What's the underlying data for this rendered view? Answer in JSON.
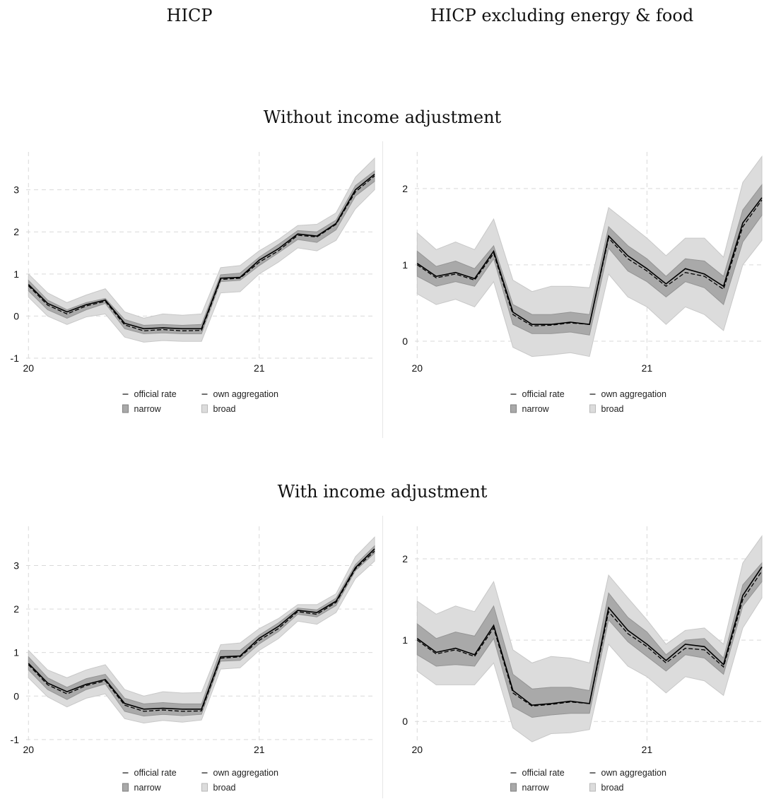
{
  "column_titles": [
    "HICP",
    "HICP excluding energy & food"
  ],
  "row_titles": [
    "Without income adjustment",
    "With income adjustment"
  ],
  "legend": {
    "official": "official rate",
    "own": "own aggregation",
    "narrow": "narrow",
    "broad": "broad"
  },
  "colors": {
    "narrow": "#a9a9a9",
    "broad": "#dcdcdc",
    "line": "#000000",
    "grid": "#d9d9d9"
  },
  "chart_data": [
    {
      "type": "line",
      "id": "hicp-without",
      "x": [
        20.0,
        20.083,
        20.167,
        20.25,
        20.333,
        20.417,
        20.5,
        20.583,
        20.667,
        20.75,
        20.833,
        20.917,
        21.0,
        21.083,
        21.167,
        21.25,
        21.333,
        21.417,
        21.5
      ],
      "xticks": [
        20,
        21
      ],
      "xlim": [
        19.99,
        21.5
      ],
      "yticks": [
        -1,
        0,
        1,
        2,
        3
      ],
      "ylim": [
        -1.05,
        3.9
      ],
      "series": [
        {
          "name": "official rate",
          "values": [
            0.75,
            0.3,
            0.1,
            0.27,
            0.38,
            -0.17,
            -0.3,
            -0.28,
            -0.3,
            -0.3,
            0.9,
            0.92,
            1.33,
            1.6,
            1.95,
            1.9,
            2.2,
            3.0,
            3.37
          ]
        },
        {
          "name": "own aggregation",
          "values": [
            0.72,
            0.26,
            0.05,
            0.24,
            0.35,
            -0.21,
            -0.35,
            -0.32,
            -0.35,
            -0.34,
            0.87,
            0.9,
            1.28,
            1.55,
            1.92,
            1.88,
            2.18,
            2.95,
            3.33
          ]
        },
        {
          "name": "narrow",
          "lower": [
            0.6,
            0.15,
            -0.05,
            0.15,
            0.3,
            -0.3,
            -0.42,
            -0.4,
            -0.42,
            -0.42,
            0.82,
            0.85,
            1.2,
            1.5,
            1.82,
            1.75,
            2.05,
            2.85,
            3.2
          ],
          "upper": [
            0.85,
            0.38,
            0.15,
            0.32,
            0.42,
            -0.08,
            -0.22,
            -0.2,
            -0.22,
            -0.2,
            0.98,
            1.02,
            1.4,
            1.7,
            2.03,
            2.0,
            2.28,
            3.1,
            3.45
          ]
        },
        {
          "name": "broad",
          "lower": [
            0.45,
            0.0,
            -0.2,
            -0.02,
            0.05,
            -0.5,
            -0.62,
            -0.58,
            -0.6,
            -0.6,
            0.55,
            0.58,
            1.0,
            1.28,
            1.62,
            1.55,
            1.8,
            2.55,
            3.0
          ],
          "upper": [
            1.0,
            0.55,
            0.32,
            0.5,
            0.65,
            0.1,
            -0.05,
            0.05,
            0.02,
            0.05,
            1.15,
            1.2,
            1.55,
            1.82,
            2.15,
            2.18,
            2.45,
            3.3,
            3.75
          ]
        }
      ]
    },
    {
      "type": "line",
      "id": "core-without",
      "x": [
        20.0,
        20.083,
        20.167,
        20.25,
        20.333,
        20.417,
        20.5,
        20.583,
        20.667,
        20.75,
        20.833,
        20.917,
        21.0,
        21.083,
        21.167,
        21.25,
        21.333,
        21.417,
        21.5
      ],
      "xticks": [
        20,
        21
      ],
      "xlim": [
        19.99,
        21.5
      ],
      "yticks": [
        0,
        1,
        2
      ],
      "ylim": [
        -0.25,
        2.48
      ],
      "series": [
        {
          "name": "official rate",
          "values": [
            1.02,
            0.85,
            0.9,
            0.82,
            1.18,
            0.38,
            0.22,
            0.22,
            0.25,
            0.22,
            1.38,
            1.12,
            0.95,
            0.75,
            0.95,
            0.88,
            0.72,
            1.55,
            1.88
          ]
        },
        {
          "name": "own aggregation",
          "values": [
            1.0,
            0.83,
            0.88,
            0.8,
            1.15,
            0.35,
            0.2,
            0.21,
            0.24,
            0.22,
            1.35,
            1.08,
            0.92,
            0.72,
            0.9,
            0.85,
            0.68,
            1.5,
            1.85
          ]
        },
        {
          "name": "narrow",
          "lower": [
            0.85,
            0.72,
            0.78,
            0.72,
            1.08,
            0.22,
            0.1,
            0.1,
            0.12,
            0.08,
            1.22,
            0.92,
            0.78,
            0.58,
            0.78,
            0.7,
            0.48,
            1.3,
            1.65
          ],
          "upper": [
            1.18,
            0.98,
            1.05,
            0.95,
            1.25,
            0.48,
            0.35,
            0.35,
            0.38,
            0.35,
            1.5,
            1.25,
            1.08,
            0.85,
            1.08,
            1.05,
            0.85,
            1.72,
            2.05
          ]
        },
        {
          "name": "broad",
          "lower": [
            0.62,
            0.48,
            0.55,
            0.45,
            0.78,
            -0.08,
            -0.2,
            -0.18,
            -0.15,
            -0.2,
            0.88,
            0.58,
            0.45,
            0.22,
            0.45,
            0.35,
            0.14,
            1.0,
            1.32
          ],
          "upper": [
            1.42,
            1.2,
            1.3,
            1.2,
            1.6,
            0.8,
            0.65,
            0.72,
            0.72,
            0.7,
            1.75,
            1.55,
            1.35,
            1.12,
            1.35,
            1.35,
            1.1,
            2.08,
            2.42
          ]
        }
      ]
    },
    {
      "type": "line",
      "id": "hicp-with",
      "x": [
        20.0,
        20.083,
        20.167,
        20.25,
        20.333,
        20.417,
        20.5,
        20.583,
        20.667,
        20.75,
        20.833,
        20.917,
        21.0,
        21.083,
        21.167,
        21.25,
        21.333,
        21.417,
        21.5
      ],
      "xticks": [
        20,
        21
      ],
      "xlim": [
        19.99,
        21.5
      ],
      "yticks": [
        -1,
        0,
        1,
        2,
        3
      ],
      "ylim": [
        -1.05,
        3.9
      ],
      "series": [
        {
          "name": "official rate",
          "values": [
            0.75,
            0.3,
            0.1,
            0.27,
            0.38,
            -0.17,
            -0.3,
            -0.28,
            -0.3,
            -0.3,
            0.9,
            0.92,
            1.33,
            1.6,
            1.97,
            1.92,
            2.18,
            2.95,
            3.38
          ]
        },
        {
          "name": "own aggregation",
          "values": [
            0.72,
            0.26,
            0.05,
            0.24,
            0.35,
            -0.21,
            -0.35,
            -0.32,
            -0.35,
            -0.34,
            0.87,
            0.9,
            1.28,
            1.55,
            1.94,
            1.88,
            2.15,
            2.92,
            3.33
          ]
        },
        {
          "name": "narrow",
          "lower": [
            0.6,
            0.15,
            -0.08,
            0.15,
            0.28,
            -0.35,
            -0.46,
            -0.42,
            -0.45,
            -0.42,
            0.8,
            0.82,
            1.2,
            1.48,
            1.88,
            1.82,
            2.08,
            2.88,
            3.28
          ],
          "upper": [
            0.9,
            0.42,
            0.2,
            0.4,
            0.5,
            -0.05,
            -0.18,
            -0.15,
            -0.18,
            -0.18,
            1.05,
            1.05,
            1.4,
            1.68,
            2.02,
            1.98,
            2.25,
            3.02,
            3.45
          ]
        },
        {
          "name": "broad",
          "lower": [
            0.42,
            -0.02,
            -0.25,
            -0.05,
            0.05,
            -0.52,
            -0.62,
            -0.56,
            -0.6,
            -0.55,
            0.62,
            0.65,
            1.05,
            1.32,
            1.72,
            1.65,
            1.92,
            2.7,
            3.1
          ],
          "upper": [
            1.05,
            0.6,
            0.42,
            0.6,
            0.72,
            0.15,
            0.0,
            0.1,
            0.07,
            0.08,
            1.18,
            1.22,
            1.55,
            1.78,
            2.1,
            2.1,
            2.35,
            3.2,
            3.65
          ]
        }
      ]
    },
    {
      "type": "line",
      "id": "core-with",
      "x": [
        20.0,
        20.083,
        20.167,
        20.25,
        20.333,
        20.417,
        20.5,
        20.583,
        20.667,
        20.75,
        20.833,
        20.917,
        21.0,
        21.083,
        21.167,
        21.25,
        21.333,
        21.417,
        21.5
      ],
      "xticks": [
        20,
        21
      ],
      "xlim": [
        19.99,
        21.5
      ],
      "yticks": [
        0,
        1,
        2
      ],
      "ylim": [
        -0.25,
        2.4
      ],
      "series": [
        {
          "name": "official rate",
          "values": [
            1.02,
            0.85,
            0.9,
            0.82,
            1.18,
            0.38,
            0.2,
            0.22,
            0.25,
            0.22,
            1.4,
            1.12,
            0.95,
            0.75,
            0.95,
            0.92,
            0.7,
            1.55,
            1.9
          ]
        },
        {
          "name": "own aggregation",
          "values": [
            1.0,
            0.83,
            0.88,
            0.8,
            1.15,
            0.35,
            0.19,
            0.21,
            0.24,
            0.22,
            1.35,
            1.08,
            0.92,
            0.72,
            0.9,
            0.88,
            0.67,
            1.5,
            1.85
          ]
        },
        {
          "name": "narrow",
          "lower": [
            0.82,
            0.68,
            0.7,
            0.68,
            1.02,
            0.18,
            0.05,
            0.08,
            0.1,
            0.1,
            1.25,
            0.98,
            0.8,
            0.62,
            0.82,
            0.78,
            0.58,
            1.42,
            1.72
          ],
          "upper": [
            1.2,
            1.02,
            1.1,
            1.05,
            1.42,
            0.58,
            0.4,
            0.42,
            0.42,
            0.38,
            1.58,
            1.28,
            1.1,
            0.82,
            1.0,
            1.02,
            0.78,
            1.68,
            1.95
          ]
        },
        {
          "name": "broad",
          "lower": [
            0.62,
            0.45,
            0.45,
            0.45,
            0.72,
            -0.08,
            -0.25,
            -0.15,
            -0.14,
            -0.1,
            0.95,
            0.68,
            0.55,
            0.35,
            0.55,
            0.5,
            0.32,
            1.15,
            1.52
          ],
          "upper": [
            1.48,
            1.32,
            1.42,
            1.35,
            1.72,
            0.88,
            0.72,
            0.8,
            0.78,
            0.72,
            1.8,
            1.52,
            1.25,
            0.95,
            1.12,
            1.15,
            0.95,
            1.95,
            2.28
          ]
        }
      ]
    }
  ]
}
